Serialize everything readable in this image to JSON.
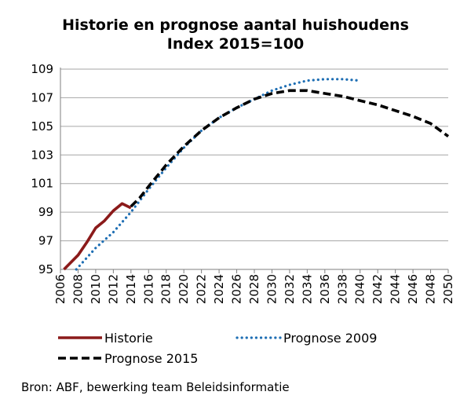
{
  "chart_data": {
    "type": "line",
    "title": "Historie en prognose aantal huishoudens",
    "subtitle": "Index 2015=100",
    "xlabel": "",
    "ylabel": "",
    "xlim": [
      2006,
      2050
    ],
    "ylim": [
      95,
      109
    ],
    "x_ticks": [
      "2006",
      "2008",
      "2010",
      "2012",
      "2014",
      "2016",
      "2018",
      "2020",
      "2022",
      "2024",
      "2026",
      "2028",
      "2030",
      "2032",
      "2034",
      "2036",
      "2038",
      "2040",
      "2042",
      "2044",
      "2046",
      "2048",
      "2050"
    ],
    "y_ticks": [
      "95",
      "97",
      "99",
      "101",
      "103",
      "105",
      "107",
      "109"
    ],
    "grid": "horizontal",
    "legend": "bottom",
    "series": [
      {
        "name": "Historie",
        "color": "#8b1a1a",
        "style": "solid",
        "points": [
          [
            2006.4,
            95.0
          ],
          [
            2008,
            96.0
          ],
          [
            2009,
            96.9
          ],
          [
            2010,
            97.9
          ],
          [
            2011,
            98.4
          ],
          [
            2012,
            99.1
          ],
          [
            2013,
            99.6
          ],
          [
            2014,
            99.3
          ]
        ]
      },
      {
        "name": "Prognose 2009",
        "color": "#1f6fb4",
        "style": "dotted",
        "points": [
          [
            2007.8,
            95.0
          ],
          [
            2010,
            96.5
          ],
          [
            2012,
            97.6
          ],
          [
            2014,
            99.0
          ],
          [
            2016,
            100.6
          ],
          [
            2018,
            102.1
          ],
          [
            2020,
            103.5
          ],
          [
            2022,
            104.7
          ],
          [
            2024,
            105.6
          ],
          [
            2026,
            106.3
          ],
          [
            2028,
            106.9
          ],
          [
            2030,
            107.5
          ],
          [
            2032,
            107.9
          ],
          [
            2034,
            108.2
          ],
          [
            2036,
            108.3
          ],
          [
            2038,
            108.3
          ],
          [
            2040,
            108.2
          ]
        ]
      },
      {
        "name": "Prognose 2015",
        "color": "#000000",
        "style": "dashed",
        "points": [
          [
            2014,
            99.4
          ],
          [
            2015,
            100.0
          ],
          [
            2016,
            100.8
          ],
          [
            2018,
            102.3
          ],
          [
            2020,
            103.6
          ],
          [
            2022,
            104.7
          ],
          [
            2024,
            105.6
          ],
          [
            2026,
            106.3
          ],
          [
            2028,
            106.9
          ],
          [
            2030,
            107.3
          ],
          [
            2032,
            107.5
          ],
          [
            2034,
            107.5
          ],
          [
            2036,
            107.3
          ],
          [
            2038,
            107.1
          ],
          [
            2040,
            106.8
          ],
          [
            2042,
            106.5
          ],
          [
            2044,
            106.1
          ],
          [
            2046,
            105.7
          ],
          [
            2048,
            105.2
          ],
          [
            2050,
            104.3
          ]
        ]
      }
    ]
  },
  "source": "Bron: ABF, bewerking team Beleidsinformatie"
}
